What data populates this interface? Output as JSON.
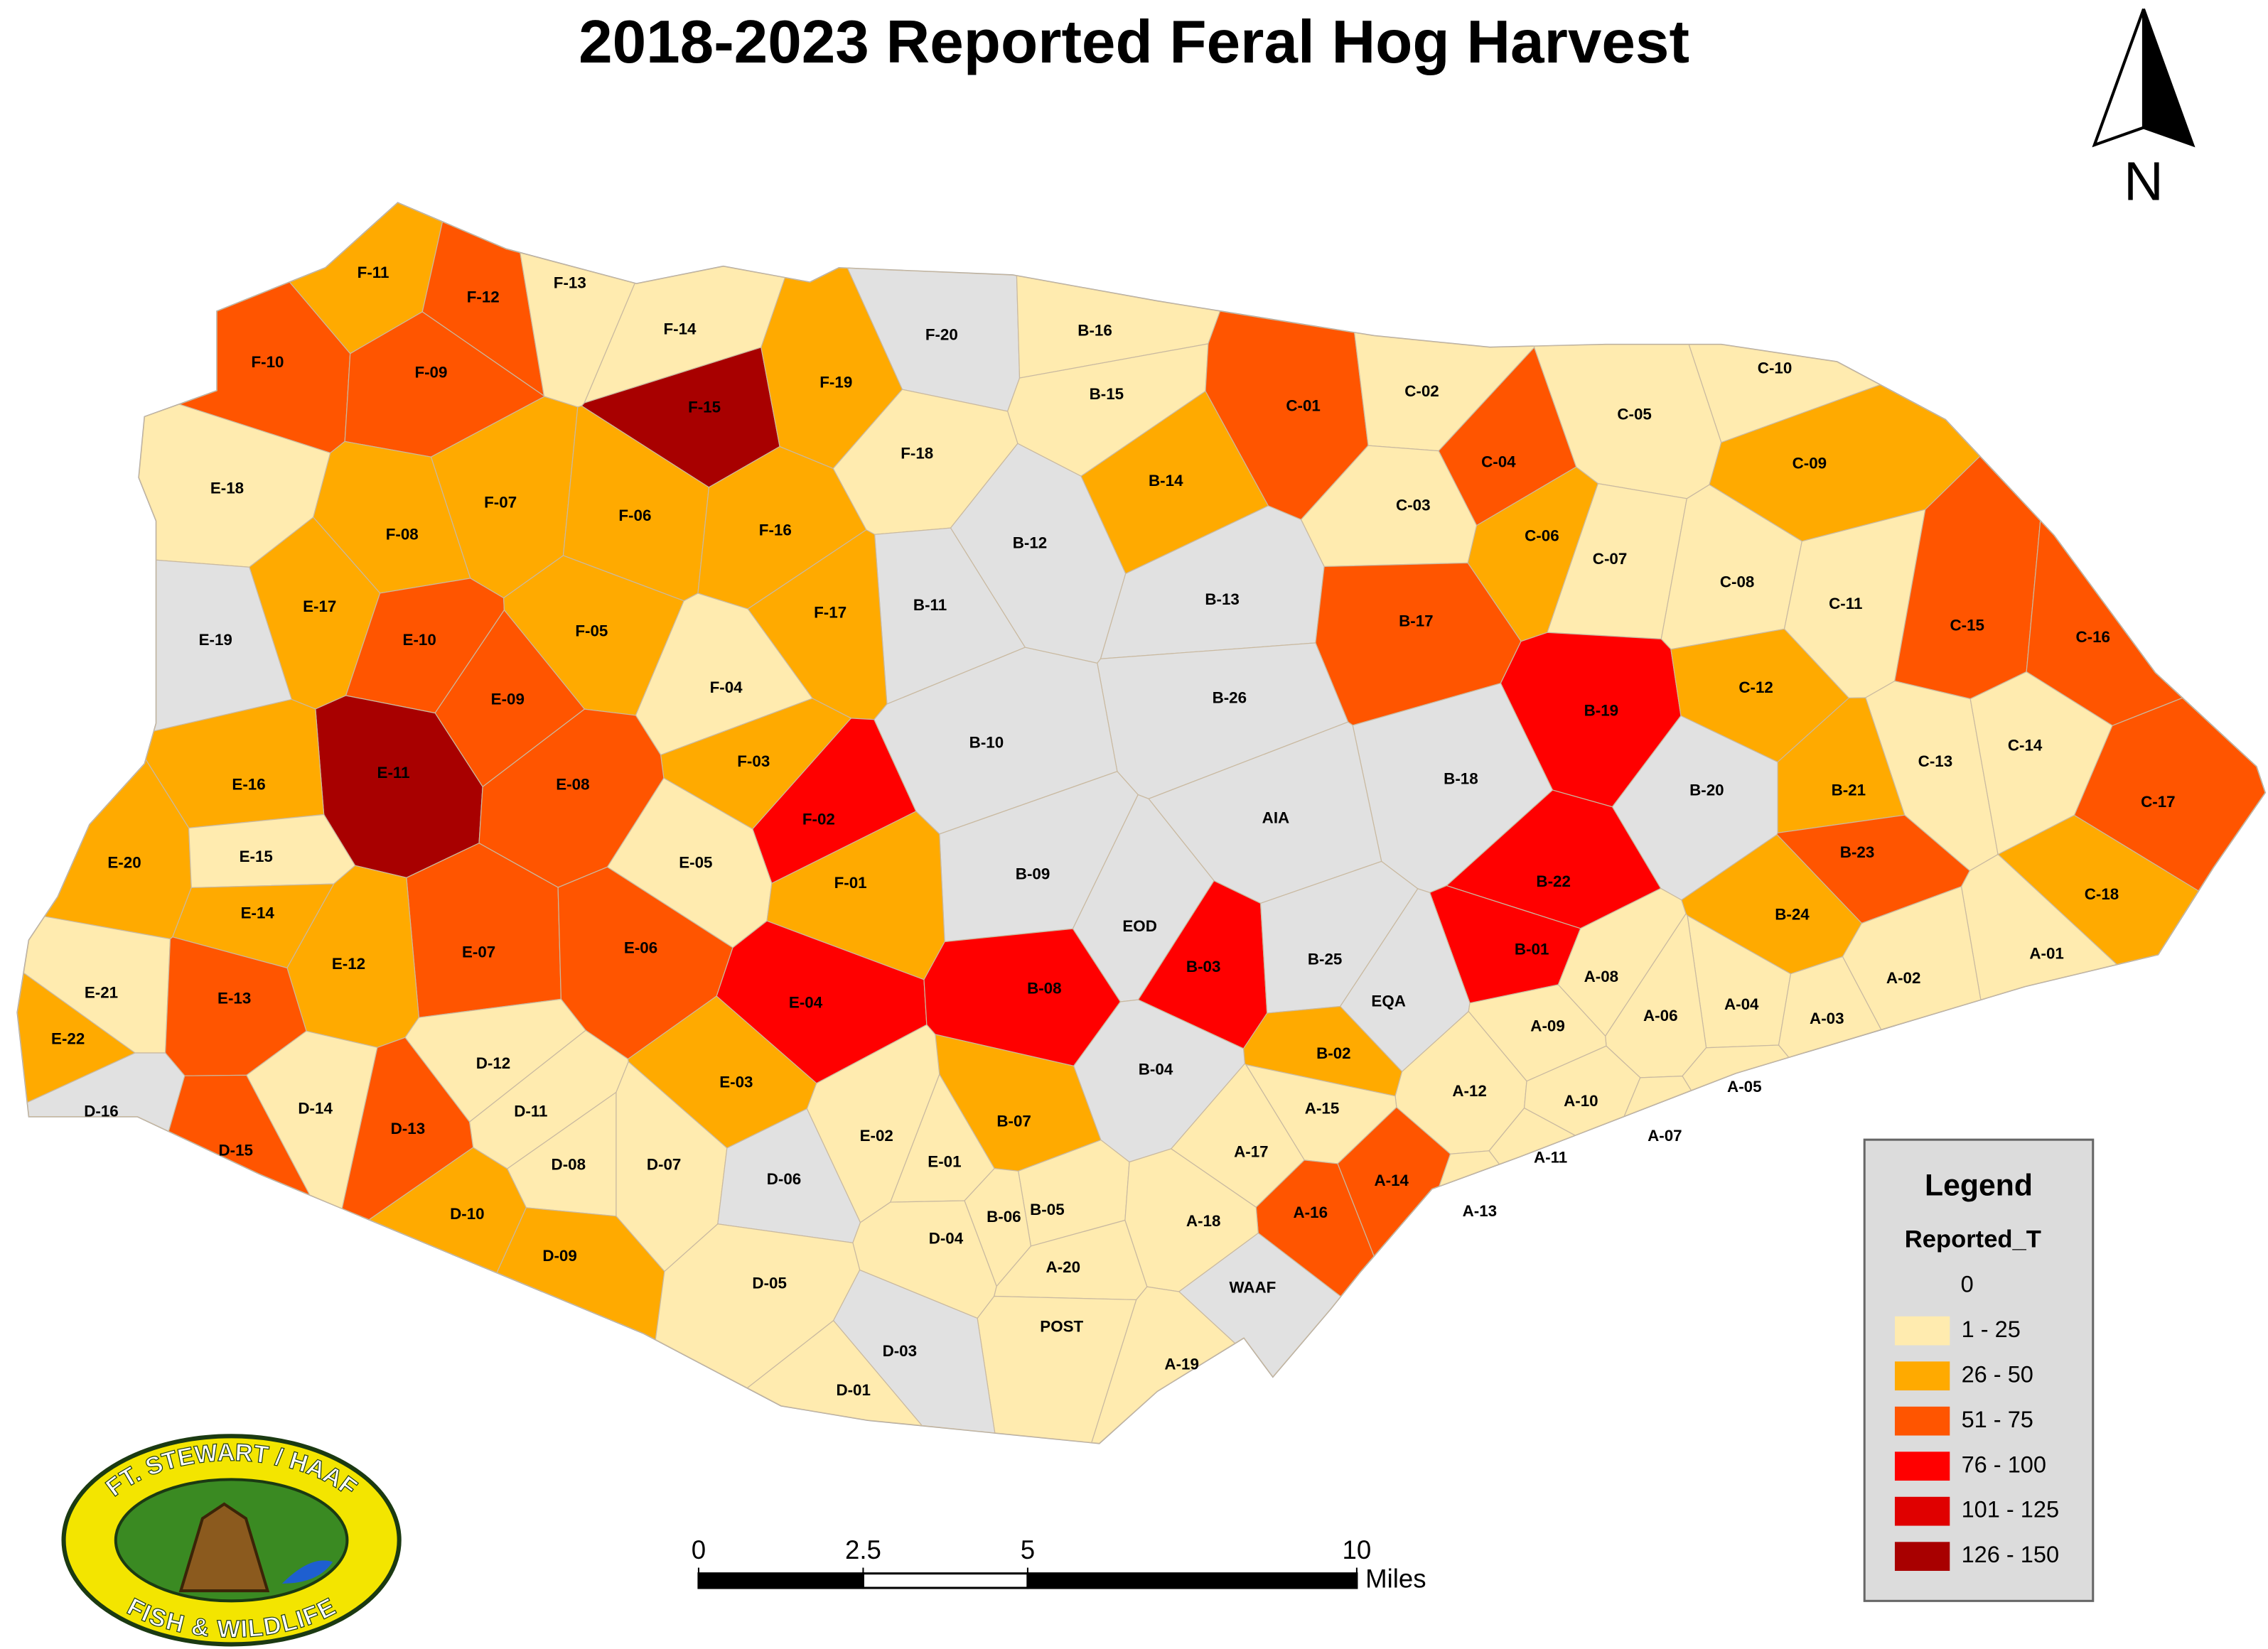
{
  "title": "2018-2023 Reported Feral Hog Harvest",
  "north": "N",
  "legend": {
    "title": "Legend",
    "field": "Reported_T",
    "items": [
      {
        "label": "0"
      },
      {
        "label": "1 - 25",
        "color": "#ffebaf"
      },
      {
        "label": "26 - 50",
        "color": "#ffaa00"
      },
      {
        "label": "51 - 75",
        "color": "#ff5500"
      },
      {
        "label": "76 - 100",
        "color": "#ff0000"
      },
      {
        "label": "101 - 125",
        "color": "#e00000"
      },
      {
        "label": "126 - 150",
        "color": "#a80000"
      }
    ]
  },
  "scale_bar": {
    "ticks": [
      0,
      2.5,
      5,
      10
    ],
    "unit": "Miles"
  },
  "logo": {
    "top": "FT. STEWART / HAAF",
    "bottom": "FISH & WILDLIFE"
  },
  "no_data_color": "#e1e1e1",
  "areas": [
    {
      "label": "F-11",
      "color": "#ffaa00"
    },
    {
      "label": "F-12",
      "color": "#ff5500"
    },
    {
      "label": "F-13",
      "color": "#ffebaf"
    },
    {
      "label": "F-14",
      "color": "#ffebaf"
    },
    {
      "label": "F-20",
      "color": "#e1e1e1"
    },
    {
      "label": "F-10",
      "color": "#ff5500"
    },
    {
      "label": "F-09",
      "color": "#ff5500"
    },
    {
      "label": "F-15",
      "color": "#a80000"
    },
    {
      "label": "F-19",
      "color": "#ffaa00"
    },
    {
      "label": "B-16",
      "color": "#ffebaf"
    },
    {
      "label": "B-15",
      "color": "#ffebaf"
    },
    {
      "label": "C-01",
      "color": "#ff5500"
    },
    {
      "label": "C-02",
      "color": "#ffebaf"
    },
    {
      "label": "C-10",
      "color": "#ffebaf"
    },
    {
      "label": "C-05",
      "color": "#ffebaf"
    },
    {
      "label": "C-04",
      "color": "#ff5500"
    },
    {
      "label": "C-09",
      "color": "#ffaa00"
    },
    {
      "label": "C-03",
      "color": "#ffebaf"
    },
    {
      "label": "E-18",
      "color": "#ffebaf"
    },
    {
      "label": "F-18",
      "color": "#ffebaf"
    },
    {
      "label": "B-14",
      "color": "#ffaa00"
    },
    {
      "label": "F-07",
      "color": "#ffaa00"
    },
    {
      "label": "F-06",
      "color": "#ffaa00"
    },
    {
      "label": "F-08",
      "color": "#ffaa00"
    },
    {
      "label": "F-16",
      "color": "#ffaa00"
    },
    {
      "label": "B-12",
      "color": "#e1e1e1"
    },
    {
      "label": "C-06",
      "color": "#ffaa00"
    },
    {
      "label": "C-07",
      "color": "#ffebaf"
    },
    {
      "label": "C-08",
      "color": "#ffebaf"
    },
    {
      "label": "E-17",
      "color": "#ffaa00"
    },
    {
      "label": "B-11",
      "color": "#e1e1e1"
    },
    {
      "label": "B-13",
      "color": "#e1e1e1"
    },
    {
      "label": "C-11",
      "color": "#ffebaf"
    },
    {
      "label": "E-19",
      "color": "#e1e1e1"
    },
    {
      "label": "E-10",
      "color": "#ff5500"
    },
    {
      "label": "F-05",
      "color": "#ffaa00"
    },
    {
      "label": "F-17",
      "color": "#ffaa00"
    },
    {
      "label": "B-17",
      "color": "#ff5500"
    },
    {
      "label": "C-15",
      "color": "#ff5500"
    },
    {
      "label": "C-16",
      "color": "#ff5500"
    },
    {
      "label": "E-09",
      "color": "#ff5500"
    },
    {
      "label": "F-04",
      "color": "#ffebaf"
    },
    {
      "label": "B-26",
      "color": "#e1e1e1"
    },
    {
      "label": "B-19",
      "color": "#ff0000"
    },
    {
      "label": "C-12",
      "color": "#ffaa00"
    },
    {
      "label": "E-11",
      "color": "#a80000"
    },
    {
      "label": "B-10",
      "color": "#e1e1e1"
    },
    {
      "label": "F-03",
      "color": "#ffaa00"
    },
    {
      "label": "E-16",
      "color": "#ffaa00"
    },
    {
      "label": "E-08",
      "color": "#ff5500"
    },
    {
      "label": "B-18",
      "color": "#e1e1e1"
    },
    {
      "label": "C-13",
      "color": "#ffebaf"
    },
    {
      "label": "C-14",
      "color": "#ffebaf"
    },
    {
      "label": "B-20",
      "color": "#e1e1e1"
    },
    {
      "label": "C-17",
      "color": "#ff5500"
    },
    {
      "label": "B-21",
      "color": "#ffaa00"
    },
    {
      "label": "F-02",
      "color": "#ff0000"
    },
    {
      "label": "AIA",
      "color": "#e1e1e1"
    },
    {
      "label": "E-20",
      "color": "#ffaa00"
    },
    {
      "label": "E-15",
      "color": "#ffebaf"
    },
    {
      "label": "E-05",
      "color": "#ffebaf"
    },
    {
      "label": "B-23",
      "color": "#ff5500"
    },
    {
      "label": "B-09",
      "color": "#e1e1e1"
    },
    {
      "label": "F-01",
      "color": "#ffaa00"
    },
    {
      "label": "B-22",
      "color": "#ff0000"
    },
    {
      "label": "C-18",
      "color": "#ffaa00"
    },
    {
      "label": "E-14",
      "color": "#ffaa00"
    },
    {
      "label": "EOD",
      "color": "#e1e1e1"
    },
    {
      "label": "B-24",
      "color": "#ffaa00"
    },
    {
      "label": "E-07",
      "color": "#ff5500"
    },
    {
      "label": "E-06",
      "color": "#ff5500"
    },
    {
      "label": "B-03",
      "color": "#ff0000"
    },
    {
      "label": "B-25",
      "color": "#e1e1e1"
    },
    {
      "label": "B-01",
      "color": "#ff0000"
    },
    {
      "label": "A-01",
      "color": "#ffebaf"
    },
    {
      "label": "E-12",
      "color": "#ffaa00"
    },
    {
      "label": "E-21",
      "color": "#ffebaf"
    },
    {
      "label": "E-13",
      "color": "#ff5500"
    },
    {
      "label": "E-04",
      "color": "#ff0000"
    },
    {
      "label": "B-08",
      "color": "#ff0000"
    },
    {
      "label": "EQA",
      "color": "#e1e1e1"
    },
    {
      "label": "A-08",
      "color": "#ffebaf"
    },
    {
      "label": "A-02",
      "color": "#ffebaf"
    },
    {
      "label": "A-04",
      "color": "#ffebaf"
    },
    {
      "label": "A-06",
      "color": "#ffebaf"
    },
    {
      "label": "A-03",
      "color": "#ffebaf"
    },
    {
      "label": "A-09",
      "color": "#ffebaf"
    },
    {
      "label": "E-22",
      "color": "#ffaa00"
    },
    {
      "label": "B-02",
      "color": "#ffaa00"
    },
    {
      "label": "D-12",
      "color": "#ffebaf"
    },
    {
      "label": "B-04",
      "color": "#e1e1e1"
    },
    {
      "label": "E-03",
      "color": "#ffaa00"
    },
    {
      "label": "A-12",
      "color": "#ffebaf"
    },
    {
      "label": "A-05",
      "color": "#ffebaf"
    },
    {
      "label": "A-10",
      "color": "#ffebaf"
    },
    {
      "label": "A-15",
      "color": "#ffebaf"
    },
    {
      "label": "D-16",
      "color": "#e1e1e1"
    },
    {
      "label": "D-14",
      "color": "#ffebaf"
    },
    {
      "label": "D-11",
      "color": "#ffebaf"
    },
    {
      "label": "D-13",
      "color": "#ff5500"
    },
    {
      "label": "B-07",
      "color": "#ffaa00"
    },
    {
      "label": "E-02",
      "color": "#ffebaf"
    },
    {
      "label": "A-07",
      "color": "#ffebaf"
    },
    {
      "label": "D-15",
      "color": "#ff5500"
    },
    {
      "label": "A-17",
      "color": "#ffebaf"
    },
    {
      "label": "A-11",
      "color": "#ffebaf"
    },
    {
      "label": "D-08",
      "color": "#ffebaf"
    },
    {
      "label": "D-07",
      "color": "#ffebaf"
    },
    {
      "label": "E-01",
      "color": "#ffebaf"
    },
    {
      "label": "D-06",
      "color": "#e1e1e1"
    },
    {
      "label": "A-14",
      "color": "#ff5500"
    },
    {
      "label": "B-05",
      "color": "#ffebaf"
    },
    {
      "label": "A-13",
      "color": "#ffebaf"
    },
    {
      "label": "D-10",
      "color": "#ffaa00"
    },
    {
      "label": "B-06",
      "color": "#ffebaf"
    },
    {
      "label": "A-16",
      "color": "#ff5500"
    },
    {
      "label": "A-18",
      "color": "#ffebaf"
    },
    {
      "label": "D-04",
      "color": "#ffebaf"
    },
    {
      "label": "D-09",
      "color": "#ffaa00"
    },
    {
      "label": "A-20",
      "color": "#ffebaf"
    },
    {
      "label": "D-05",
      "color": "#ffebaf"
    },
    {
      "label": "WAAF",
      "color": "#e1e1e1"
    },
    {
      "label": "POST",
      "color": "#ffebaf"
    },
    {
      "label": "D-03",
      "color": "#e1e1e1"
    },
    {
      "label": "A-19",
      "color": "#ffebaf"
    },
    {
      "label": "D-01",
      "color": "#ffebaf"
    }
  ]
}
